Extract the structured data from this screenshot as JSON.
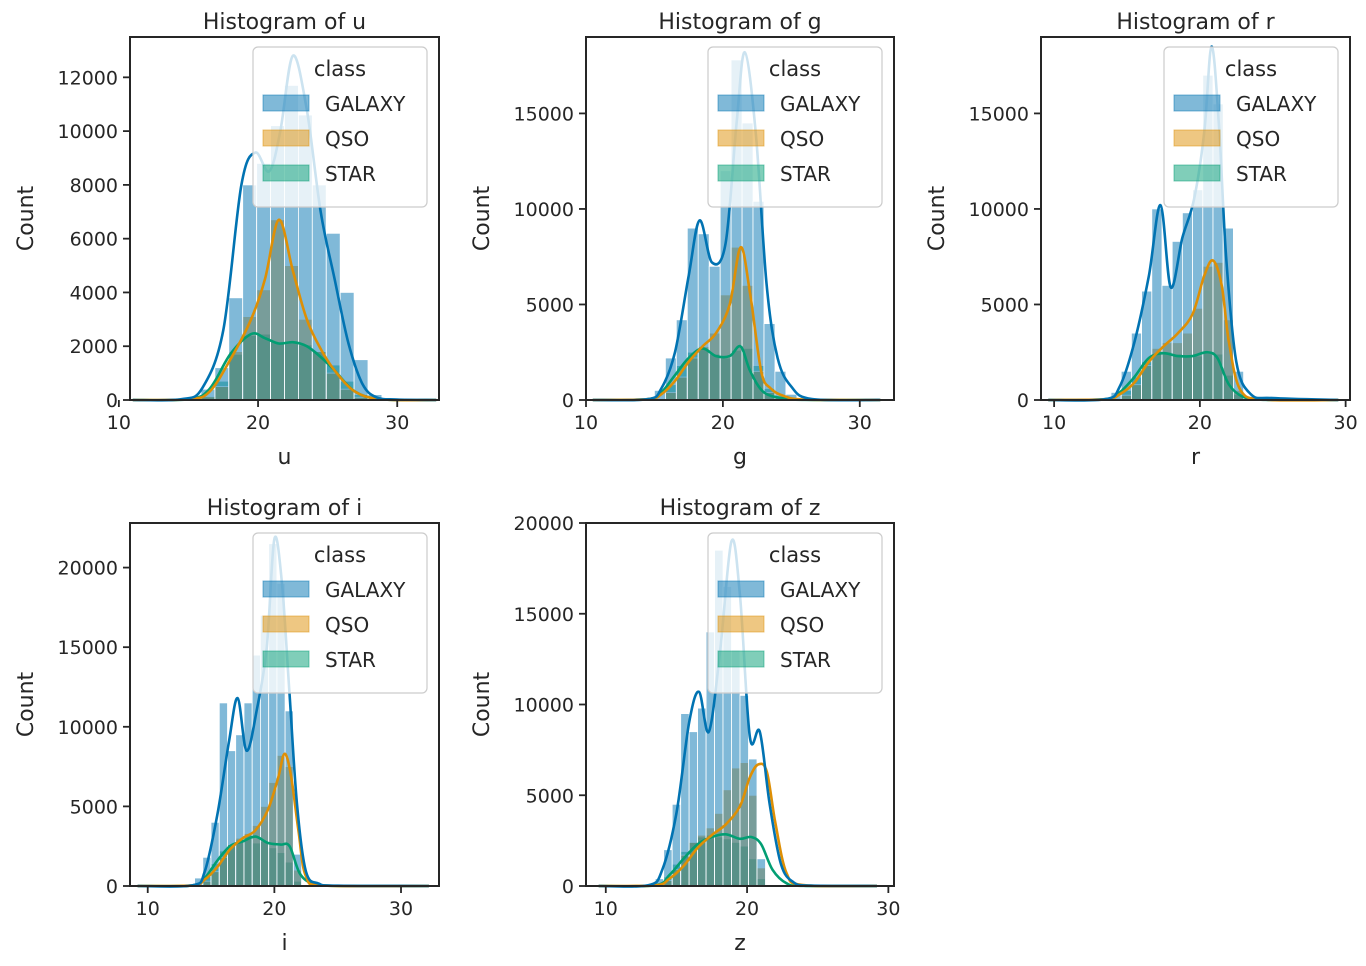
{
  "colors": {
    "GALAXY": "#0173b2",
    "QSO": "#de8f05",
    "STAR": "#029e73"
  },
  "legend_title": "class",
  "legend_labels": [
    "GALAXY",
    "QSO",
    "STAR"
  ],
  "ylabel": "Count",
  "chart_data": [
    {
      "type": "histogram",
      "title": "Histogram of u",
      "xlabel": "u",
      "xlim": [
        10.8,
        33.0
      ],
      "ylim": [
        0,
        13500
      ],
      "xticks": [
        10,
        20,
        30
      ],
      "yticks": [
        0,
        2000,
        4000,
        6000,
        8000,
        10000,
        12000
      ],
      "legend": "top-right",
      "bin_start": 15.9,
      "bin_width": 1.0,
      "series": [
        {
          "name": "STAR",
          "values": [
            150,
            700,
            1700,
            2400,
            2450,
            2150,
            2150,
            2050,
            1800,
            1300,
            700,
            200,
            50
          ]
        },
        {
          "name": "QSO",
          "values": [
            120,
            500,
            1800,
            3100,
            4100,
            6700,
            5000,
            3000,
            1800,
            1000,
            400,
            100,
            30
          ]
        },
        {
          "name": "GALAXY",
          "values": [
            400,
            1200,
            3800,
            8000,
            8800,
            10200,
            11700,
            10600,
            8000,
            6200,
            4000,
            1500,
            200
          ]
        }
      ],
      "kde": [
        {
          "name": "STAR",
          "x": [
            11,
            15,
            16.5,
            18,
            19.5,
            20.5,
            21.5,
            22.5,
            23.5,
            24.5,
            25.5,
            27,
            29,
            32.8
          ],
          "y": [
            0,
            30,
            400,
            1700,
            2450,
            2300,
            2100,
            2150,
            2000,
            1600,
            1100,
            300,
            20,
            0
          ]
        },
        {
          "name": "QSO",
          "x": [
            11,
            15,
            16.5,
            18,
            19.5,
            20.5,
            21.5,
            22.5,
            23.5,
            24.5,
            25.5,
            27,
            29,
            32.8
          ],
          "y": [
            0,
            30,
            300,
            1500,
            3000,
            4500,
            6700,
            4800,
            3000,
            1900,
            1100,
            300,
            20,
            0
          ]
        },
        {
          "name": "GALAXY",
          "x": [
            11,
            14.5,
            16,
            17.5,
            18.8,
            19.8,
            20.8,
            21.6,
            22.5,
            23.5,
            24.5,
            25.5,
            26.5,
            27.5,
            28.5,
            30,
            32.8
          ],
          "y": [
            0,
            30,
            450,
            2600,
            8000,
            9200,
            8500,
            10000,
            12800,
            10800,
            7000,
            4500,
            2100,
            600,
            100,
            20,
            0
          ]
        }
      ]
    },
    {
      "type": "histogram",
      "title": "Histogram of g",
      "xlabel": "g",
      "xlim": [
        10.0,
        32.5
      ],
      "ylim": [
        0,
        19000
      ],
      "xticks": [
        10,
        20,
        30
      ],
      "yticks": [
        0,
        5000,
        10000,
        15000
      ],
      "legend": "top-right",
      "bin_start": 15.0,
      "bin_width": 0.8,
      "series": [
        {
          "name": "STAR",
          "values": [
            100,
            800,
            1800,
            2500,
            2700,
            2400,
            2200,
            2600,
            2700,
            1800,
            600,
            150,
            40
          ]
        },
        {
          "name": "QSO",
          "values": [
            60,
            400,
            1200,
            2200,
            2800,
            3500,
            5500,
            8000,
            6000,
            1500,
            400,
            100,
            30
          ]
        },
        {
          "name": "GALAXY",
          "values": [
            500,
            2200,
            4200,
            9000,
            8700,
            7000,
            12000,
            17800,
            14500,
            10400,
            4000,
            1500,
            300
          ]
        }
      ],
      "kde": [
        {
          "name": "STAR",
          "x": [
            10.5,
            14.5,
            15.5,
            16.5,
            17.5,
            18.5,
            19.5,
            20.5,
            21.3,
            22.0,
            23.0,
            24.5,
            26,
            31.5
          ],
          "y": [
            0,
            40,
            400,
            1300,
            2200,
            2700,
            2300,
            2300,
            2800,
            1500,
            400,
            80,
            10,
            0
          ]
        },
        {
          "name": "QSO",
          "x": [
            10.5,
            14.5,
            15.5,
            16.5,
            17.5,
            18.5,
            19.5,
            20.5,
            21.3,
            22.0,
            22.8,
            23.5,
            24.5,
            26,
            31.5
          ],
          "y": [
            0,
            40,
            300,
            1000,
            2000,
            2800,
            3500,
            5000,
            8000,
            5500,
            1500,
            600,
            200,
            20,
            0
          ]
        },
        {
          "name": "GALAXY",
          "x": [
            10.5,
            14.5,
            15.5,
            16.5,
            17.5,
            18.3,
            19.2,
            20.2,
            21.0,
            21.6,
            22.4,
            23.2,
            24.0,
            25.0,
            26.5,
            31.5
          ],
          "y": [
            0,
            40,
            600,
            2500,
            6500,
            9400,
            7200,
            8200,
            14500,
            18200,
            14000,
            6000,
            2200,
            700,
            50,
            0
          ]
        }
      ]
    },
    {
      "type": "histogram",
      "title": "Histogram of r",
      "xlabel": "r",
      "xlim": [
        9.1,
        30.3
      ],
      "ylim": [
        0,
        19000
      ],
      "xticks": [
        10,
        20,
        30
      ],
      "yticks": [
        0,
        5000,
        10000,
        15000
      ],
      "legend": "top-right",
      "bin_start": 13.9,
      "bin_width": 0.7,
      "series": [
        {
          "name": "STAR",
          "values": [
            100,
            500,
            1200,
            2000,
            2400,
            2500,
            2400,
            2300,
            2300,
            2500,
            2400,
            1300,
            300
          ]
        },
        {
          "name": "QSO",
          "values": [
            50,
            250,
            800,
            1800,
            2700,
            3000,
            3000,
            3500,
            4800,
            7000,
            7200,
            4200,
            500
          ]
        },
        {
          "name": "GALAXY",
          "values": [
            400,
            1500,
            3500,
            5700,
            10000,
            6000,
            8300,
            9800,
            11000,
            17000,
            15500,
            9000,
            1500
          ]
        }
      ],
      "kde": [
        {
          "name": "STAR",
          "x": [
            9.6,
            13.5,
            14.5,
            15.5,
            16.5,
            17.5,
            18.5,
            19.5,
            20.5,
            21.2,
            22.0,
            23.0,
            24.5,
            29.5
          ],
          "y": [
            0,
            40,
            400,
            1200,
            2200,
            2450,
            2300,
            2300,
            2500,
            2200,
            800,
            150,
            10,
            0
          ]
        },
        {
          "name": "QSO",
          "x": [
            9.6,
            13.5,
            14.5,
            15.5,
            16.5,
            17.5,
            18.5,
            19.5,
            20.3,
            20.9,
            21.5,
            22.0,
            22.8,
            24.5,
            29.5
          ],
          "y": [
            0,
            40,
            300,
            900,
            2000,
            2800,
            3500,
            4500,
            6500,
            7300,
            6000,
            3000,
            500,
            20,
            0
          ]
        },
        {
          "name": "GALAXY",
          "x": [
            9.6,
            13.5,
            14.5,
            15.5,
            16.5,
            17.3,
            18.0,
            18.8,
            19.6,
            20.3,
            20.8,
            21.3,
            21.8,
            22.5,
            23.5,
            25,
            29.5
          ],
          "y": [
            0,
            40,
            700,
            3000,
            6500,
            10200,
            5900,
            8500,
            10500,
            14000,
            18500,
            14500,
            7500,
            2000,
            300,
            100,
            0
          ]
        }
      ]
    },
    {
      "type": "histogram",
      "title": "Histogram of i",
      "xlabel": "i",
      "xlim": [
        8.6,
        33.0
      ],
      "ylim": [
        0,
        22800
      ],
      "xticks": [
        10,
        20,
        30
      ],
      "yticks": [
        0,
        5000,
        10000,
        15000,
        20000
      ],
      "legend": "top-right",
      "bin_start": 13.7,
      "bin_width": 0.65,
      "series": [
        {
          "name": "STAR",
          "values": [
            100,
            600,
            1400,
            2200,
            2600,
            2900,
            3200,
            2700,
            2800,
            2400,
            2100,
            1500,
            300
          ]
        },
        {
          "name": "QSO",
          "values": [
            50,
            300,
            900,
            1800,
            2600,
            3000,
            3300,
            3800,
            5000,
            6500,
            8200,
            7500,
            1000
          ]
        },
        {
          "name": "GALAXY",
          "values": [
            500,
            1800,
            4000,
            11500,
            8500,
            9500,
            11500,
            14500,
            17000,
            21500,
            19000,
            11000,
            2000
          ]
        }
      ],
      "kde": [
        {
          "name": "STAR",
          "x": [
            9.2,
            13.5,
            14.5,
            15.5,
            16.5,
            17.5,
            18.5,
            19.5,
            20.5,
            21.2,
            22.0,
            23.0,
            24.5,
            32.2
          ],
          "y": [
            0,
            40,
            500,
            1600,
            2500,
            2800,
            3100,
            2700,
            2600,
            2500,
            800,
            150,
            10,
            0
          ]
        },
        {
          "name": "QSO",
          "x": [
            9.2,
            13.5,
            14.5,
            15.5,
            16.5,
            17.5,
            18.5,
            19.5,
            20.3,
            20.8,
            21.3,
            21.9,
            22.5,
            24,
            32.2
          ],
          "y": [
            0,
            40,
            400,
            1200,
            2300,
            3000,
            3500,
            4800,
            6800,
            8300,
            7000,
            3500,
            600,
            40,
            0
          ]
        },
        {
          "name": "GALAXY",
          "x": [
            9.2,
            13.5,
            14.5,
            15.5,
            16.4,
            17.1,
            17.8,
            18.6,
            19.4,
            20.0,
            20.6,
            21.2,
            21.8,
            22.5,
            23.5,
            25,
            32.2
          ],
          "y": [
            0,
            40,
            900,
            4500,
            9000,
            11800,
            8500,
            11000,
            15000,
            21800,
            19000,
            12000,
            5000,
            900,
            150,
            20,
            0
          ]
        }
      ]
    },
    {
      "type": "histogram",
      "title": "Histogram of z",
      "xlabel": "z",
      "xlim": [
        8.6,
        30.4
      ],
      "ylim": [
        0,
        20000
      ],
      "xticks": [
        10,
        20,
        30
      ],
      "yticks": [
        0,
        5000,
        10000,
        15000,
        20000
      ],
      "legend": "top-right",
      "bin_start": 13.5,
      "bin_width": 0.6,
      "series": [
        {
          "name": "STAR",
          "values": [
            100,
            500,
            1200,
            1900,
            2400,
            2700,
            2800,
            2700,
            2600,
            2400,
            2200,
            1500,
            400
          ]
        },
        {
          "name": "QSO",
          "values": [
            50,
            300,
            900,
            1700,
            2400,
            2800,
            3200,
            4000,
            5300,
            6500,
            6800,
            5000,
            1000
          ]
        },
        {
          "name": "GALAXY",
          "values": [
            400,
            2000,
            4500,
            9500,
            8500,
            9800,
            14000,
            18500,
            16500,
            13000,
            10500,
            7000,
            1500
          ]
        }
      ],
      "kde": [
        {
          "name": "STAR",
          "x": [
            9.5,
            13.5,
            14.5,
            15.5,
            16.5,
            17.5,
            18.5,
            19.5,
            20.3,
            21.0,
            21.8,
            22.8,
            24,
            29.2
          ],
          "y": [
            0,
            40,
            600,
            1500,
            2300,
            2700,
            2850,
            2600,
            2700,
            2300,
            900,
            150,
            10,
            0
          ]
        },
        {
          "name": "QSO",
          "x": [
            9.5,
            13.5,
            14.5,
            15.5,
            16.5,
            17.5,
            18.5,
            19.5,
            20.2,
            20.8,
            21.4,
            22.0,
            22.8,
            24,
            29.2
          ],
          "y": [
            0,
            40,
            400,
            1100,
            2100,
            2800,
            3400,
            4400,
            6000,
            6700,
            6300,
            3500,
            700,
            50,
            0
          ]
        },
        {
          "name": "GALAXY",
          "x": [
            9.5,
            13.0,
            14.0,
            15.0,
            15.9,
            16.6,
            17.3,
            18.1,
            18.9,
            19.5,
            20.2,
            20.9,
            21.6,
            22.4,
            23.3,
            24.5,
            29.2
          ],
          "y": [
            0,
            40,
            900,
            4000,
            9000,
            10700,
            8500,
            13000,
            19000,
            16000,
            8200,
            8500,
            4500,
            1200,
            200,
            20,
            0
          ]
        }
      ]
    }
  ]
}
